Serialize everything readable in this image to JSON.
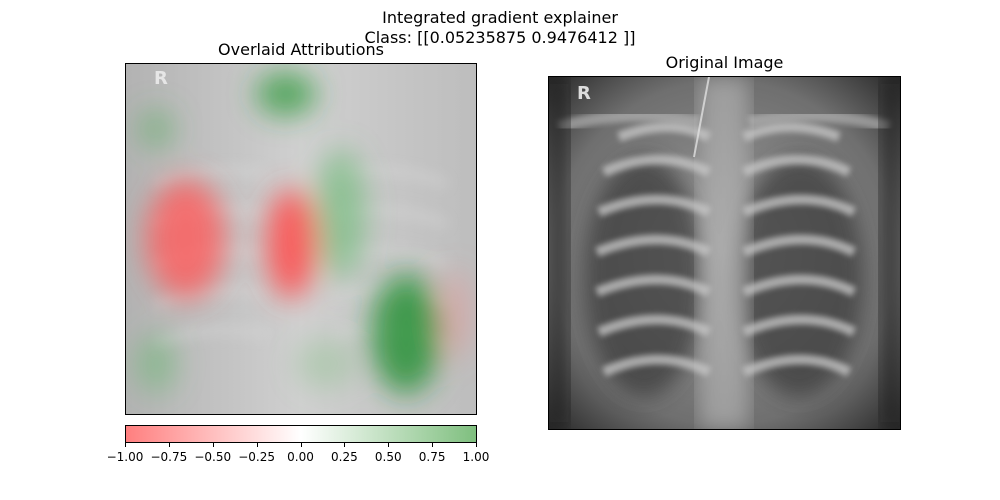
{
  "figure": {
    "title_line1": "Integrated gradient explainer",
    "title_line2": "Class: [[0.05235875 0.9476412 ]]"
  },
  "left_panel": {
    "title": "Overlaid Attributions",
    "image_marker": "R"
  },
  "right_panel": {
    "title": "Original Image",
    "image_marker": "R"
  },
  "colorbar": {
    "tick_labels": [
      "−1.00",
      "−0.75",
      "−0.50",
      "−0.25",
      "0.00",
      "0.25",
      "0.50",
      "0.75",
      "1.00"
    ],
    "colors": {
      "negative": "#ff7f7f",
      "zero": "#ffffff",
      "positive": "#7fbf7f"
    }
  },
  "chart_data": {
    "type": "heatmap",
    "title": "Integrated gradient explainer",
    "subtitle": "Class: [[0.05235875 0.9476412 ]]",
    "class_probabilities": [
      0.05235875,
      0.9476412
    ],
    "colorbar_range": [
      -1.0,
      1.0
    ],
    "colorbar_ticks": [
      -1.0,
      -0.75,
      -0.5,
      -0.25,
      0.0,
      0.25,
      0.5,
      0.75,
      1.0
    ],
    "colormap": [
      "#ff7f7f",
      "#ffffff",
      "#7fbf7f"
    ]
  }
}
